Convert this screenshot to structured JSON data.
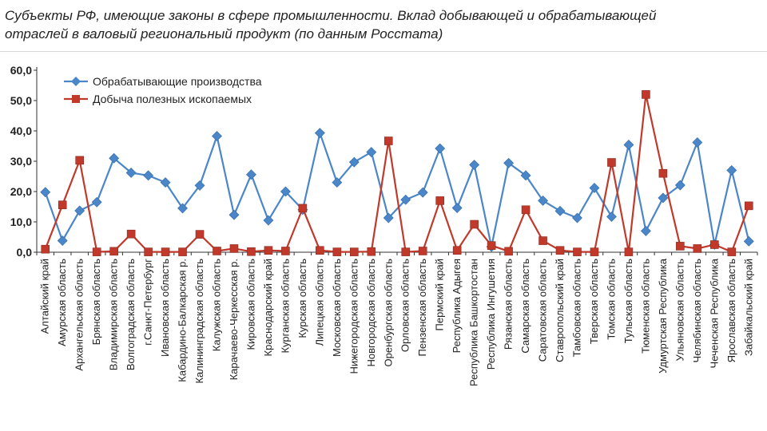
{
  "title_line1": "Субъекты РФ, имеющие законы в сфере промышленности. Вклад добывающей и обрабатывающей",
  "title_line2": "отраслей в валовый региональный продукт (по данным Росстата)",
  "colors": {
    "series1": "#4a86c8",
    "series2": "#c0392b",
    "axis": "#333333"
  },
  "chart_data": {
    "type": "line",
    "title": "",
    "xlabel": "",
    "ylabel": "",
    "ylim": [
      0,
      60
    ],
    "yticks": [
      "0,0",
      "10,0",
      "20,0",
      "30,0",
      "40,0",
      "50,0",
      "60,0"
    ],
    "legend_position": "top-left",
    "grid": false,
    "categories": [
      "Алтайский край",
      "Амурская область",
      "Архангельская область",
      "Брянская область",
      "Владимирская область",
      "Волгоградская область",
      "г.Санкт-Петербург",
      "Ивановская область",
      "Кабардино-Балкарская р.",
      "Калининградская область",
      "Калужская область",
      "Карачаево-Черкесская р.",
      "Кировская область",
      "Краснодарский край",
      "Курганская область",
      "Курская область",
      "Липецкая область",
      "Московская область",
      "Нижегородская область",
      "Новгородская область",
      "Оренбургская область",
      "Орловская область",
      "Пензенская область",
      "Пермский край",
      "Республика Адыгея",
      "Республика Башкортостан",
      "Республика Ингушетия",
      "Рязанская область",
      "Самарская область",
      "Саратовская область",
      "Ставропольский край",
      "Тамбовская область",
      "Тверская область",
      "Томская область",
      "Тульская область",
      "Тюменская область",
      "Удмуртская Республика",
      "Ульяновская область",
      "Челябинская область",
      "Чеченская Республика",
      "Ярославская область",
      "Забайкальский край"
    ],
    "series": [
      {
        "name": "Обрабатывающие производства",
        "values": [
          19.8,
          3.8,
          13.7,
          16.5,
          31.0,
          26.2,
          25.3,
          23.0,
          14.5,
          22.0,
          38.3,
          12.3,
          25.6,
          10.5,
          20.0,
          14.0,
          39.3,
          23.0,
          29.7,
          33.0,
          11.3,
          17.3,
          19.7,
          34.2,
          14.6,
          28.8,
          1.8,
          29.4,
          25.3,
          17.0,
          13.6,
          11.3,
          21.2,
          11.7,
          35.4,
          7.0,
          17.9,
          22.1,
          36.2,
          2.5,
          27.0,
          3.6
        ]
      },
      {
        "name": "Добыча полезных ископаемых",
        "values": [
          1.0,
          15.6,
          30.3,
          0.1,
          0.3,
          6.0,
          0.1,
          0.1,
          0.1,
          5.9,
          0.4,
          1.2,
          0.2,
          0.6,
          0.4,
          14.5,
          0.6,
          0.1,
          0.1,
          0.2,
          36.7,
          0.1,
          0.4,
          17.0,
          0.6,
          9.2,
          2.2,
          0.3,
          14.0,
          3.8,
          0.6,
          0.1,
          0.1,
          29.6,
          0.1,
          52.0,
          26.0,
          2.0,
          1.2,
          2.5,
          0.1,
          15.3
        ]
      }
    ]
  }
}
